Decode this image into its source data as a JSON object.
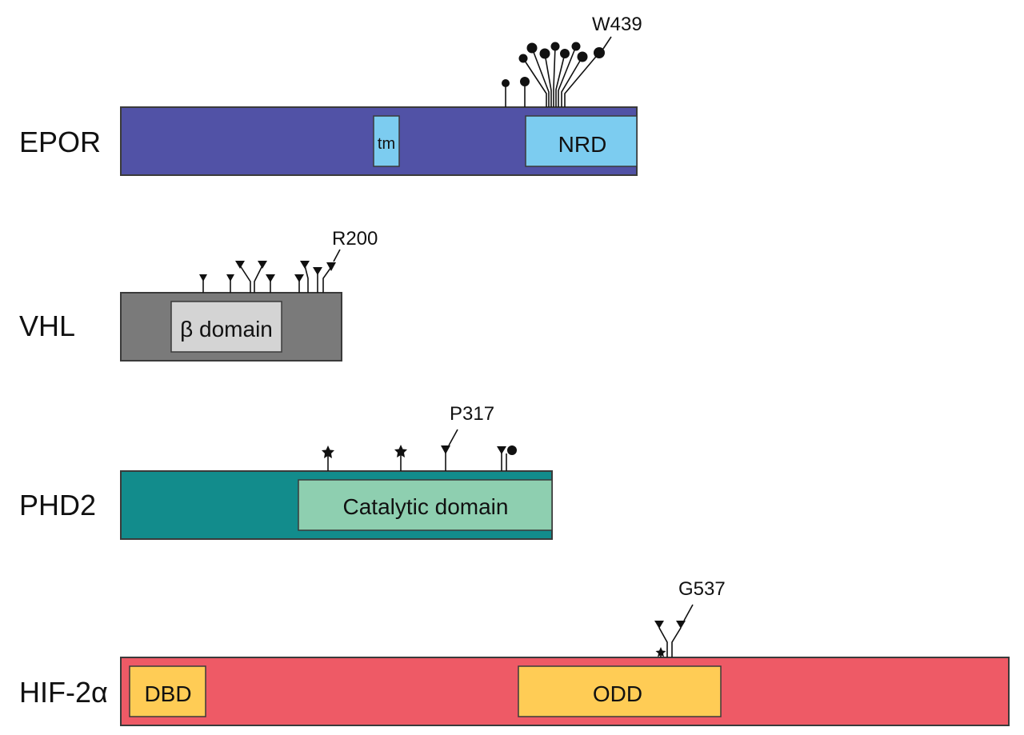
{
  "colors": {
    "EPOR": "#5152a6",
    "VHL": "#7a7a7a",
    "PHD2": "#128c8c",
    "HIF2A": "#ee5a66",
    "domain_light_blue": "#7cccf0",
    "domain_light_gray": "#d4d4d4",
    "domain_green": "#8ecfb0",
    "domain_yellow": "#ffcc55",
    "marker": "#111111"
  },
  "proteins": [
    {
      "key": "EPOR",
      "label": "EPOR",
      "domains": [
        {
          "key": "tm",
          "label": "tm"
        },
        {
          "key": "nrd",
          "label": "NRD"
        }
      ],
      "highlighted_mutation": "W439"
    },
    {
      "key": "VHL",
      "label": "VHL",
      "domains": [
        {
          "key": "beta",
          "label": "β domain"
        }
      ],
      "highlighted_mutation": "R200"
    },
    {
      "key": "PHD2",
      "label": "PHD2",
      "domains": [
        {
          "key": "catalytic",
          "label": "Catalytic domain"
        }
      ],
      "highlighted_mutation": "P317"
    },
    {
      "key": "HIF2A",
      "label": "HIF-2α",
      "domains": [
        {
          "key": "dbd",
          "label": "DBD"
        },
        {
          "key": "odd",
          "label": "ODD"
        }
      ],
      "highlighted_mutation": "G537"
    }
  ],
  "marker_shapes": {
    "circle": "lollipop-circle",
    "triangle": "lollipop-triangle",
    "star": "lollipop-star"
  }
}
